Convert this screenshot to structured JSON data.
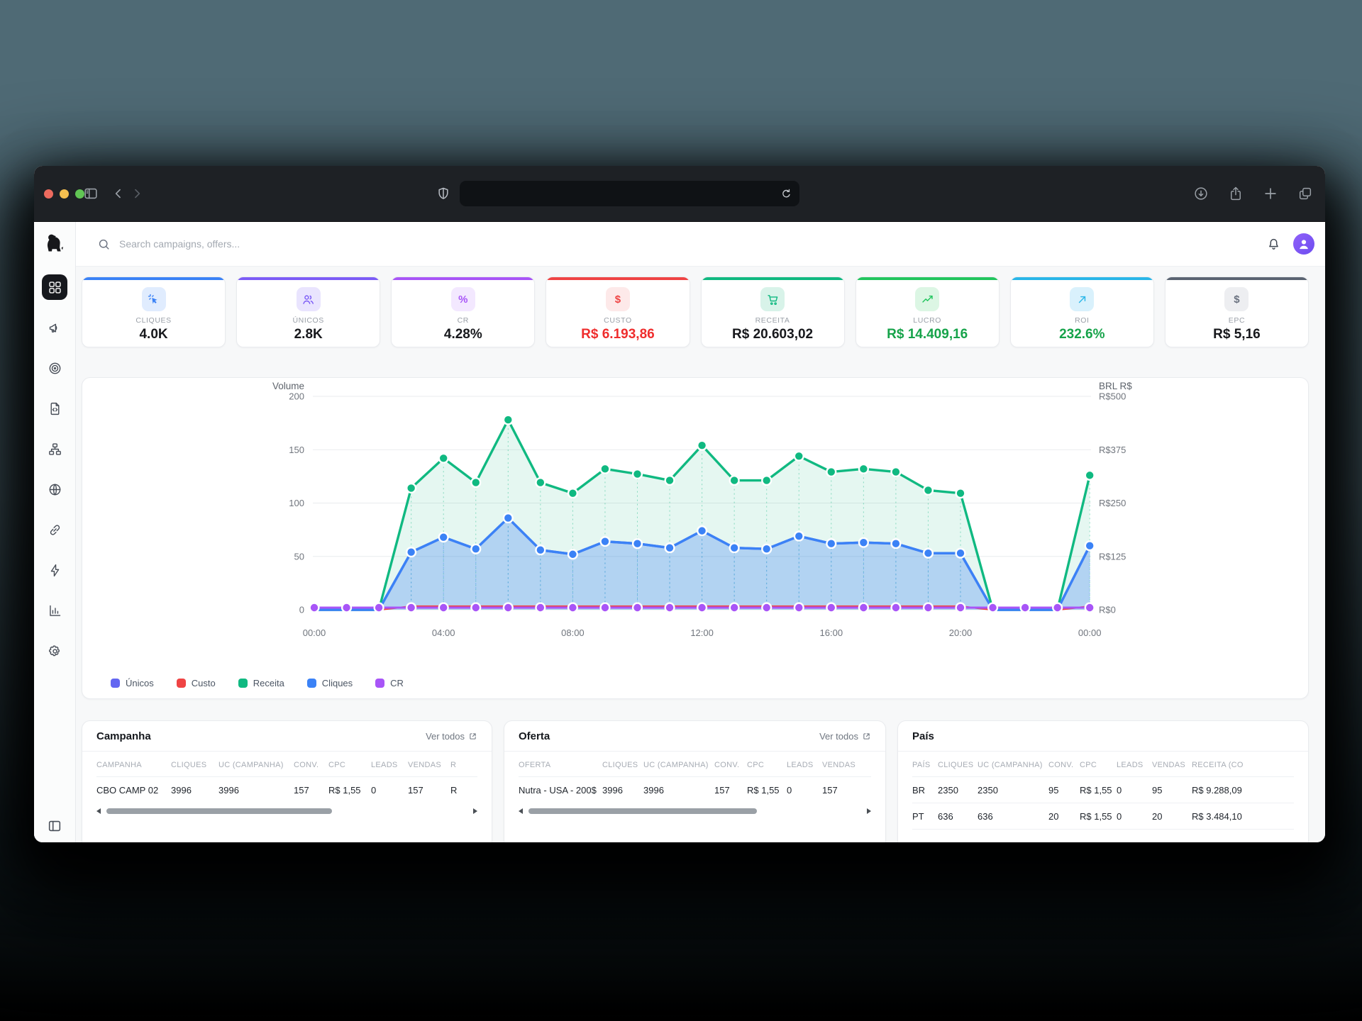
{
  "browser": {
    "url_value": "",
    "icons": [
      "traffic-close",
      "traffic-minimize",
      "traffic-zoom",
      "sidebar-toggle",
      "back-chevron",
      "forward-chevron",
      "shield",
      "reload",
      "download",
      "share",
      "new-tab",
      "tab-overview"
    ]
  },
  "header": {
    "search_placeholder": "Search campaigns, offers...",
    "icons": [
      "dog-logo",
      "search",
      "bell",
      "avatar"
    ]
  },
  "sidebar": {
    "items": [
      {
        "name": "dashboard",
        "icon": "dashboard-grid",
        "active": true
      },
      {
        "name": "campaigns",
        "icon": "megaphone",
        "active": false
      },
      {
        "name": "offers",
        "icon": "target",
        "active": false
      },
      {
        "name": "landing-pages",
        "icon": "file-code",
        "active": false
      },
      {
        "name": "flows",
        "icon": "hierarchy",
        "active": false
      },
      {
        "name": "domains",
        "icon": "globe",
        "active": false
      },
      {
        "name": "links",
        "icon": "link",
        "active": false
      },
      {
        "name": "automation",
        "icon": "lightning",
        "active": false
      },
      {
        "name": "reports",
        "icon": "bar-chart",
        "active": false
      },
      {
        "name": "settings",
        "icon": "gear",
        "active": false
      }
    ],
    "collapse_icon": "panel-toggle"
  },
  "stats": {
    "cards": [
      {
        "label": "CLIQUES",
        "value": "4.0K",
        "accent": "#3b82f6",
        "icon": "cursor-click",
        "chip_bg": "#e0ecfe",
        "value_color": "#17181c"
      },
      {
        "label": "ÚNICOS",
        "value": "2.8K",
        "accent": "#7c5cf6",
        "icon": "users",
        "chip_bg": "#e9e4fe",
        "value_color": "#17181c"
      },
      {
        "label": "CR",
        "value": "4.28%",
        "accent": "#a855f7",
        "icon": "percent",
        "chip_bg": "#f3e8ff",
        "value_color": "#17181c"
      },
      {
        "label": "CUSTO",
        "value": "R$ 6.193,86",
        "accent": "#ef4444",
        "icon": "dollar",
        "chip_bg": "#fde9e9",
        "value_color": "#ef2d2d"
      },
      {
        "label": "RECEITA",
        "value": "R$ 20.603,02",
        "accent": "#10b981",
        "icon": "cart",
        "chip_bg": "#d8f3e9",
        "value_color": "#17181c"
      },
      {
        "label": "LUCRO",
        "value": "R$ 14.409,16",
        "accent": "#22c55e",
        "icon": "trend-up",
        "chip_bg": "#dcf6e4",
        "value_color": "#16a34a"
      },
      {
        "label": "ROI",
        "value": "232.6%",
        "accent": "#29b6e8",
        "icon": "arrow-up-right",
        "chip_bg": "#d9f1fc",
        "value_color": "#16a34a"
      },
      {
        "label": "EPC",
        "value": "R$ 5,16",
        "accent": "#5b6472",
        "icon": "dollar",
        "chip_bg": "#edeef1",
        "value_color": "#17181c",
        "icon_color": "#6b7280"
      }
    ]
  },
  "chart_data": {
    "type": "line",
    "title_left": "Volume",
    "title_right": "BRL R$",
    "x": [
      "00:00",
      "01:00",
      "02:00",
      "03:00",
      "04:00",
      "05:00",
      "06:00",
      "07:00",
      "08:00",
      "09:00",
      "10:00",
      "11:00",
      "12:00",
      "13:00",
      "14:00",
      "15:00",
      "16:00",
      "17:00",
      "18:00",
      "19:00",
      "20:00",
      "21:00",
      "22:00",
      "23:00",
      "00:00"
    ],
    "x_tick_every": 4,
    "left_axis": {
      "min": 0,
      "max": 200,
      "ticks": [
        "0",
        "50",
        "100",
        "150",
        "200"
      ]
    },
    "right_axis": {
      "min": 0,
      "max": 500,
      "ticks": [
        "R$0",
        "R$125",
        "R$250",
        "R$375",
        "R$500"
      ]
    },
    "grid": true,
    "legend_position": "bottom-left",
    "legend": [
      "Únicos",
      "Custo",
      "Receita",
      "Cliques",
      "CR"
    ],
    "series": [
      {
        "name": "Únicos",
        "color": "#6366f1",
        "axis": "left",
        "area": false,
        "dots": false,
        "values": [
          0,
          0,
          0,
          54,
          68,
          57,
          86,
          56,
          52,
          64,
          62,
          58,
          74,
          58,
          57,
          69,
          62,
          63,
          62,
          53,
          53,
          0,
          0,
          0,
          60
        ]
      },
      {
        "name": "Custo",
        "color": "#ef4444",
        "axis": "right",
        "area": false,
        "dots": false,
        "values": [
          0,
          0,
          0,
          8,
          8,
          8,
          8,
          8,
          8,
          8,
          8,
          8,
          8,
          8,
          8,
          8,
          8,
          8,
          8,
          8,
          8,
          0,
          0,
          0,
          8
        ]
      },
      {
        "name": "Receita",
        "color": "#10b981",
        "axis": "right",
        "area": true,
        "dots": true,
        "values": [
          0,
          0,
          0,
          285,
          355,
          298,
          445,
          298,
          273,
          330,
          318,
          303,
          385,
          303,
          303,
          360,
          323,
          330,
          323,
          280,
          273,
          0,
          0,
          0,
          315
        ]
      },
      {
        "name": "Cliques",
        "color": "#3b82f6",
        "axis": "left",
        "area": true,
        "dots": true,
        "values": [
          0,
          0,
          0,
          54,
          68,
          57,
          86,
          56,
          52,
          64,
          62,
          58,
          74,
          58,
          57,
          69,
          62,
          63,
          62,
          53,
          53,
          0,
          0,
          0,
          60
        ]
      },
      {
        "name": "CR",
        "color": "#a855f7",
        "axis": "left",
        "area": false,
        "dots": true,
        "values": [
          2,
          2,
          2,
          2,
          2,
          2,
          2,
          2,
          2,
          2,
          2,
          2,
          2,
          2,
          2,
          2,
          2,
          2,
          2,
          2,
          2,
          2,
          2,
          2,
          2
        ]
      }
    ]
  },
  "tables": [
    {
      "title": "Campanha",
      "link": "Ver todos",
      "columns": [
        "CAMPANHA",
        "CLIQUES",
        "UC (CAMPANHA)",
        "CONV.",
        "CPC",
        "LEADS",
        "VENDAS",
        "R"
      ],
      "rows": [
        [
          "CBO CAMP 02",
          "3996",
          "3996",
          "157",
          "R$ 1,55",
          "0",
          "157",
          "R"
        ]
      ],
      "has_scrollbar": true
    },
    {
      "title": "Oferta",
      "link": "Ver todos",
      "columns": [
        "OFERTA",
        "CLIQUES",
        "UC (CAMPANHA)",
        "CONV.",
        "CPC",
        "LEADS",
        "VENDAS"
      ],
      "rows": [
        [
          "Nutra - USA - 200$",
          "3996",
          "3996",
          "157",
          "R$ 1,55",
          "0",
          "157"
        ]
      ],
      "has_scrollbar": true
    },
    {
      "title": "País",
      "link": "",
      "columns": [
        "PAÍS",
        "CLIQUES",
        "UC (CAMPANHA)",
        "CONV.",
        "CPC",
        "LEADS",
        "VENDAS",
        "RECEITA (CO"
      ],
      "rows": [
        [
          "BR",
          "2350",
          "2350",
          "95",
          "R$ 1,55",
          "0",
          "95",
          "R$ 9.288,09"
        ],
        [
          "PT",
          "636",
          "636",
          "20",
          "R$ 1,55",
          "0",
          "20",
          "R$ 3.484,10"
        ]
      ],
      "has_scrollbar": false
    }
  ]
}
